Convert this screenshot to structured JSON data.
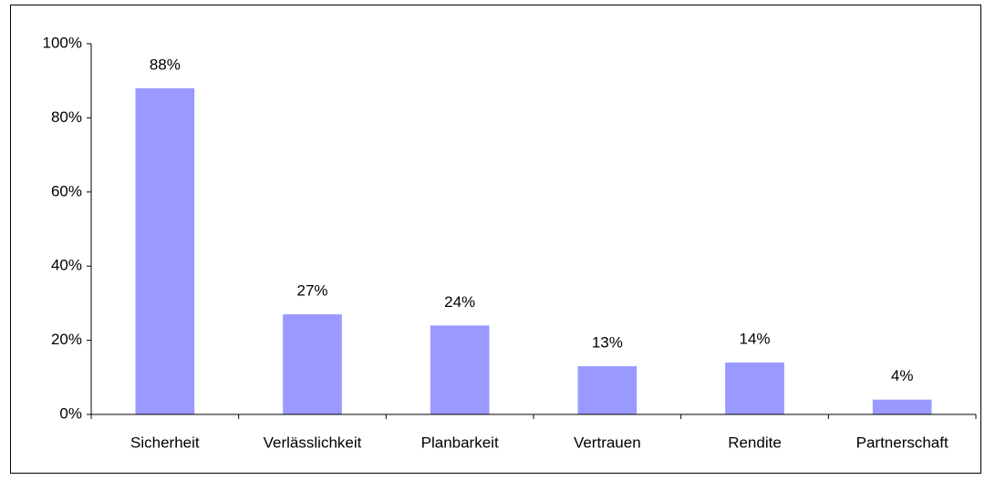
{
  "chart_data": {
    "type": "bar",
    "categories": [
      "Sicherheit",
      "Verlässlichkeit",
      "Planbarkeit",
      "Vertrauen",
      "Rendite",
      "Partnerschaft"
    ],
    "values": [
      88,
      27,
      24,
      13,
      14,
      4
    ],
    "value_labels": [
      "88%",
      "27%",
      "24%",
      "13%",
      "14%",
      "4%"
    ],
    "color": "#9999ff",
    "ylim": [
      0,
      100
    ],
    "yticks": [
      {
        "value": 0,
        "label": "0%"
      },
      {
        "value": 20,
        "label": "20%"
      },
      {
        "value": 40,
        "label": "40%"
      },
      {
        "value": 60,
        "label": "60%"
      },
      {
        "value": 80,
        "label": "80%"
      },
      {
        "value": 100,
        "label": "100%"
      }
    ],
    "grid": false
  }
}
